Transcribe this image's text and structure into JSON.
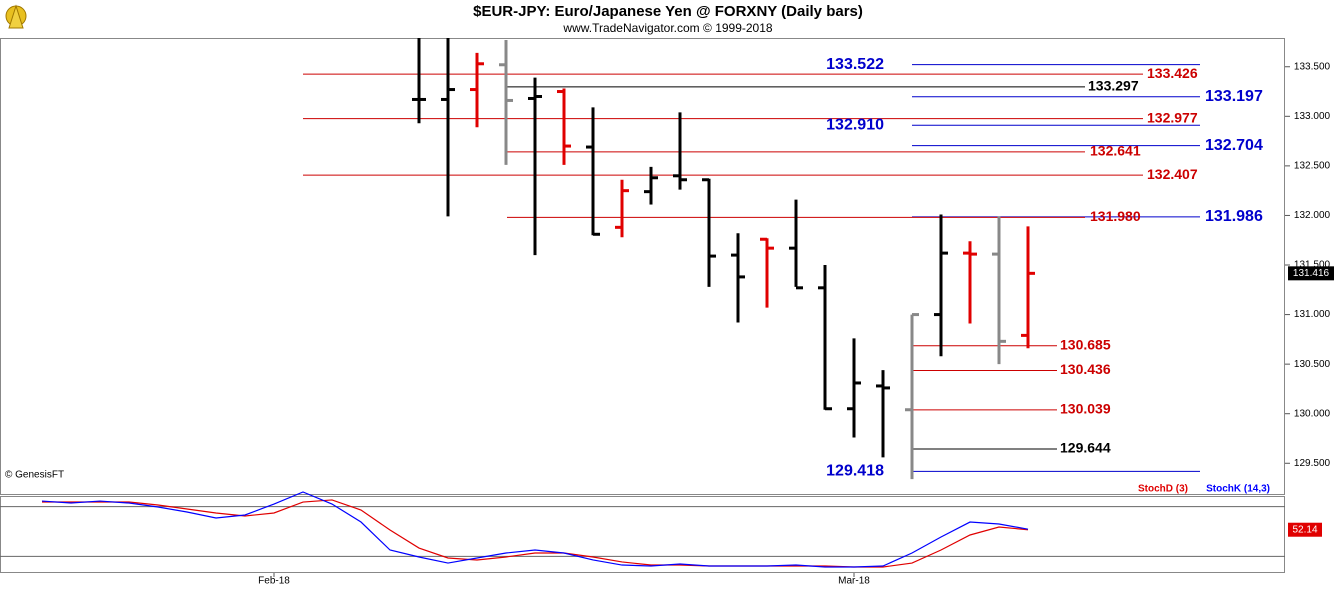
{
  "chart_data": [
    {
      "type": "ohlc",
      "title": "$EUR-JPY:  Euro/Japanese Yen @ FORXNY  (Daily bars)",
      "subtitle": "www.TradeNavigator.com © 1999-2018",
      "annotation": "© GenesisFT",
      "categories": [
        null,
        null,
        null,
        null,
        null,
        null,
        null,
        null,
        "Feb-18",
        null,
        null,
        null,
        null,
        null,
        null,
        null,
        null,
        null,
        null,
        null,
        null,
        null,
        null,
        null,
        null,
        null,
        null,
        null,
        "Mar-18",
        null,
        null,
        null,
        null,
        null,
        null
      ],
      "series": [
        {
          "open": [
            null,
            null,
            null,
            null,
            null,
            null,
            null,
            null,
            null,
            null,
            null,
            null,
            null,
            133.17,
            133.17,
            133.27,
            133.52,
            133.18,
            133.25,
            132.69,
            131.88,
            132.24,
            132.4,
            132.36,
            131.6,
            131.76,
            131.67,
            131.27,
            130.05,
            130.28,
            130.04,
            131.0,
            131.62,
            131.61,
            130.79
          ],
          "high": [
            null,
            null,
            null,
            null,
            null,
            null,
            null,
            null,
            null,
            null,
            null,
            null,
            null,
            133.79,
            133.79,
            133.64,
            133.77,
            133.39,
            133.28,
            133.09,
            132.36,
            132.49,
            133.04,
            132.37,
            131.82,
            131.77,
            132.16,
            131.5,
            130.76,
            130.44,
            131.0,
            132.01,
            131.74,
            131.99,
            131.89
          ],
          "low": [
            null,
            null,
            null,
            null,
            null,
            null,
            null,
            null,
            null,
            null,
            null,
            null,
            null,
            132.93,
            131.99,
            132.89,
            132.51,
            131.6,
            132.51,
            131.8,
            131.78,
            132.11,
            132.26,
            131.28,
            130.92,
            131.07,
            131.28,
            130.04,
            129.76,
            129.56,
            129.34,
            130.58,
            130.91,
            130.5,
            130.66
          ],
          "close": [
            null,
            null,
            null,
            null,
            null,
            null,
            null,
            null,
            null,
            null,
            null,
            null,
            null,
            133.17,
            133.27,
            133.53,
            133.16,
            133.2,
            132.7,
            131.81,
            132.25,
            132.38,
            132.36,
            131.59,
            131.38,
            131.67,
            131.27,
            130.05,
            130.31,
            130.26,
            131.0,
            131.62,
            131.61,
            130.73,
            131.416
          ],
          "colors": [
            null,
            null,
            null,
            null,
            null,
            null,
            null,
            null,
            null,
            null,
            null,
            null,
            null,
            "#000000",
            "#000000",
            "#e00000",
            "#888888",
            "#000000",
            "#e00000",
            "#000000",
            "#e00000",
            "#000000",
            "#000000",
            "#000000",
            "#000000",
            "#e00000",
            "#000000",
            "#000000",
            "#000000",
            "#000000",
            "#888888",
            "#000000",
            "#e00000",
            "#888888",
            "#e00000"
          ]
        }
      ],
      "ylim": [
        129.19,
        133.79
      ],
      "yticks": [
        {
          "value": 129.5,
          "label": "129.500"
        },
        {
          "value": 130,
          "label": "130.000"
        },
        {
          "value": 130.5,
          "label": "130.500"
        },
        {
          "value": 131,
          "label": "131.000"
        },
        {
          "value": 131.5,
          "label": "131.500"
        },
        {
          "value": 132,
          "label": "132.000"
        },
        {
          "value": 132.5,
          "label": "132.500"
        },
        {
          "value": 133,
          "label": "133.000"
        },
        {
          "value": 133.5,
          "label": "133.500"
        }
      ],
      "levels": [
        {
          "value": 133.522,
          "label": "133.522",
          "color": "#0000cc"
        },
        {
          "value": 133.426,
          "label": "133.426",
          "color": "#cc0000"
        },
        {
          "value": 133.297,
          "label": "133.297",
          "color": "#000000"
        },
        {
          "value": 133.197,
          "label": "133.197",
          "color": "#0000cc"
        },
        {
          "value": 132.977,
          "label": "132.977",
          "color": "#cc0000"
        },
        {
          "value": 132.91,
          "label": "132.910",
          "color": "#0000cc"
        },
        {
          "value": 132.704,
          "label": "132.704",
          "color": "#0000cc"
        },
        {
          "value": 132.641,
          "label": "132.641",
          "color": "#cc0000"
        },
        {
          "value": 132.407,
          "label": "132.407",
          "color": "#cc0000"
        },
        {
          "value": 131.986,
          "label": "131.986",
          "color": "#0000cc"
        },
        {
          "value": 131.98,
          "label": "131.980",
          "color": "#cc0000"
        },
        {
          "value": 130.685,
          "label": "130.685",
          "color": "#cc0000"
        },
        {
          "value": 130.436,
          "label": "130.436",
          "color": "#cc0000"
        },
        {
          "value": 130.039,
          "label": "130.039",
          "color": "#cc0000"
        },
        {
          "value": 129.644,
          "label": "129.644",
          "color": "#000000"
        },
        {
          "value": 129.418,
          "label": "129.418",
          "color": "#0000cc"
        }
      ]
    },
    {
      "type": "line",
      "series": [
        {
          "name": "StochD (3)",
          "color": "#e00000",
          "values": [
            85.5,
            85.5,
            85.5,
            85.5,
            81.9,
            77.1,
            72.3,
            68.7,
            72.3,
            85.5,
            88.0,
            75.9,
            51.8,
            30.1,
            18.1,
            15.7,
            19.3,
            24.1,
            24.1,
            19.3,
            13.3,
            9.6,
            9.6,
            8.4,
            8.4,
            8.4,
            8.4,
            8.4,
            7.2,
            7.2,
            12.0,
            27.7,
            45.8,
            55.4,
            52.14
          ]
        },
        {
          "name": "StochK (14,3)",
          "color": "#0000ff",
          "values": [
            86.7,
            84.3,
            86.7,
            84.3,
            79.5,
            73.5,
            66.3,
            69.9,
            83.1,
            97.6,
            83.1,
            61.4,
            27.7,
            19.3,
            12.0,
            18.1,
            24.1,
            27.7,
            24.1,
            15.7,
            9.6,
            8.4,
            10.8,
            8.4,
            8.4,
            8.4,
            9.6,
            7.2,
            7.2,
            8.4,
            24.1,
            43.4,
            61.4,
            59.0,
            52.8
          ]
        }
      ],
      "ylim": [
        0,
        100
      ],
      "yticks": [
        20,
        80
      ]
    }
  ]
}
